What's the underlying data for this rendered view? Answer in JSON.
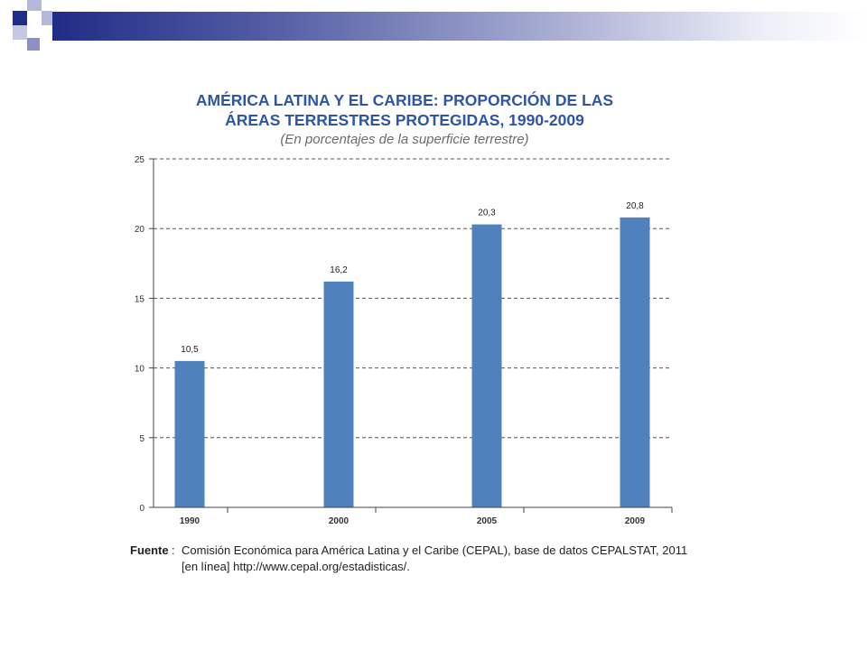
{
  "slide": {
    "accent_dark": "#1f2d86",
    "accent_light": "#b4b8da"
  },
  "chart_data": {
    "type": "bar",
    "title_line1": "AMÉRICA LATINA Y EL CARIBE: PROPORCIÓN DE LAS",
    "title_line2": "ÁREAS TERRESTRES PROTEGIDAS, 1990-2009",
    "subtitle": "(En porcentajes de la superficie terrestre)",
    "categories": [
      "1990",
      "2000",
      "2005",
      "2009"
    ],
    "values": [
      10.5,
      16.2,
      20.3,
      20.8
    ],
    "value_labels": [
      "10,5",
      "16,2",
      "20,3",
      "20,8"
    ],
    "ylim": [
      0,
      25
    ],
    "yticks": [
      0,
      5,
      10,
      15,
      20,
      25
    ],
    "grid": true,
    "bar_color": "#4f81bd"
  },
  "source": {
    "label": "Fuente",
    "colon": ":",
    "text": "Comisión Económica para América Latina y el Caribe (CEPAL), base de datos CEPALSTAT, 2011 [en línea] http://www.cepal.org/estadisticas/."
  }
}
